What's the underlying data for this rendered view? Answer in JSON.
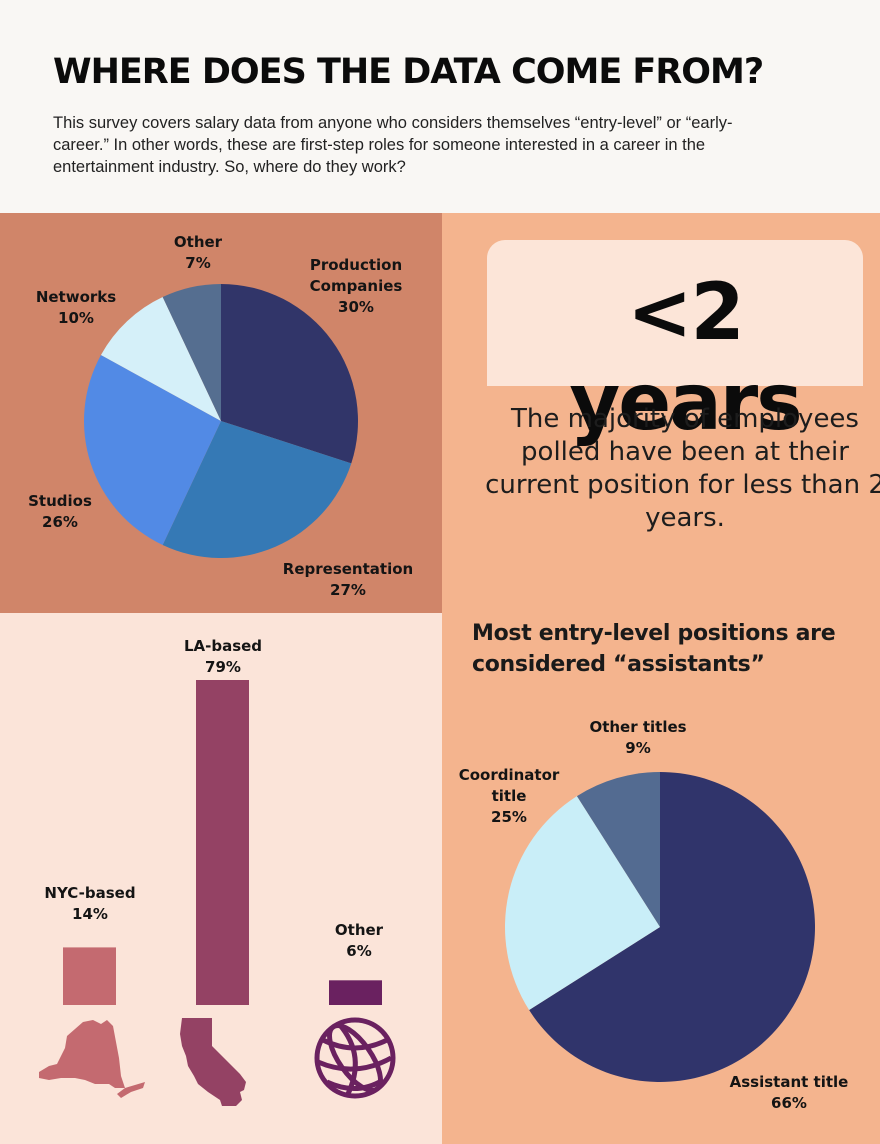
{
  "header": {
    "title": "WHERE DOES THE DATA COME FROM?",
    "intro": "This survey covers salary data from anyone who considers themselves “entry-level” or “early-career.” In other words, these are first-step roles for someone interested in a career in the entertainment industry. So, where do they work?"
  },
  "stat": {
    "value": "<2 years",
    "caption": "The majority of employees polled have been at their current position for less than 2 years."
  },
  "assist_heading": "Most entry-level positions are considered “assistants”",
  "colors": {
    "panel_top_left": "#d08569",
    "panel_bottom_left": "#fbe4d9",
    "panel_right": "#f4b48e"
  },
  "chart_data": [
    {
      "type": "pie",
      "slices": [
        {
          "line1": "Production",
          "line2": "Companies",
          "pct_label": "30%",
          "value": 30,
          "color": "#313569"
        },
        {
          "line1": "Representation",
          "pct_label": "27%",
          "value": 27,
          "color": "#3579b5"
        },
        {
          "line1": "Studios",
          "pct_label": "26%",
          "value": 26,
          "color": "#528ae5"
        },
        {
          "line1": "Networks",
          "pct_label": "10%",
          "value": 10,
          "color": "#d5f0f9"
        },
        {
          "line1": "Other",
          "pct_label": "7%",
          "value": 7,
          "color": "#556e90"
        }
      ]
    },
    {
      "type": "bar",
      "categories": [
        "NYC-based",
        "LA-based",
        "Other"
      ],
      "values": [
        14,
        79,
        6
      ],
      "value_labels": [
        "14%",
        "79%",
        "6%"
      ],
      "colors": [
        "#c46a70",
        "#944264",
        "#6a2160"
      ],
      "icons": [
        "new-york-state-icon",
        "california-state-icon",
        "globe-icon"
      ]
    },
    {
      "type": "pie",
      "slices": [
        {
          "line1": "Assistant title",
          "pct_label": "66%",
          "value": 66,
          "color": "#30346b"
        },
        {
          "line1": "Coordinator",
          "line2": "title",
          "pct_label": "25%",
          "value": 25,
          "color": "#c9eef8"
        },
        {
          "line1": "Other titles",
          "pct_label": "9%",
          "value": 9,
          "color": "#536b91"
        }
      ]
    }
  ]
}
